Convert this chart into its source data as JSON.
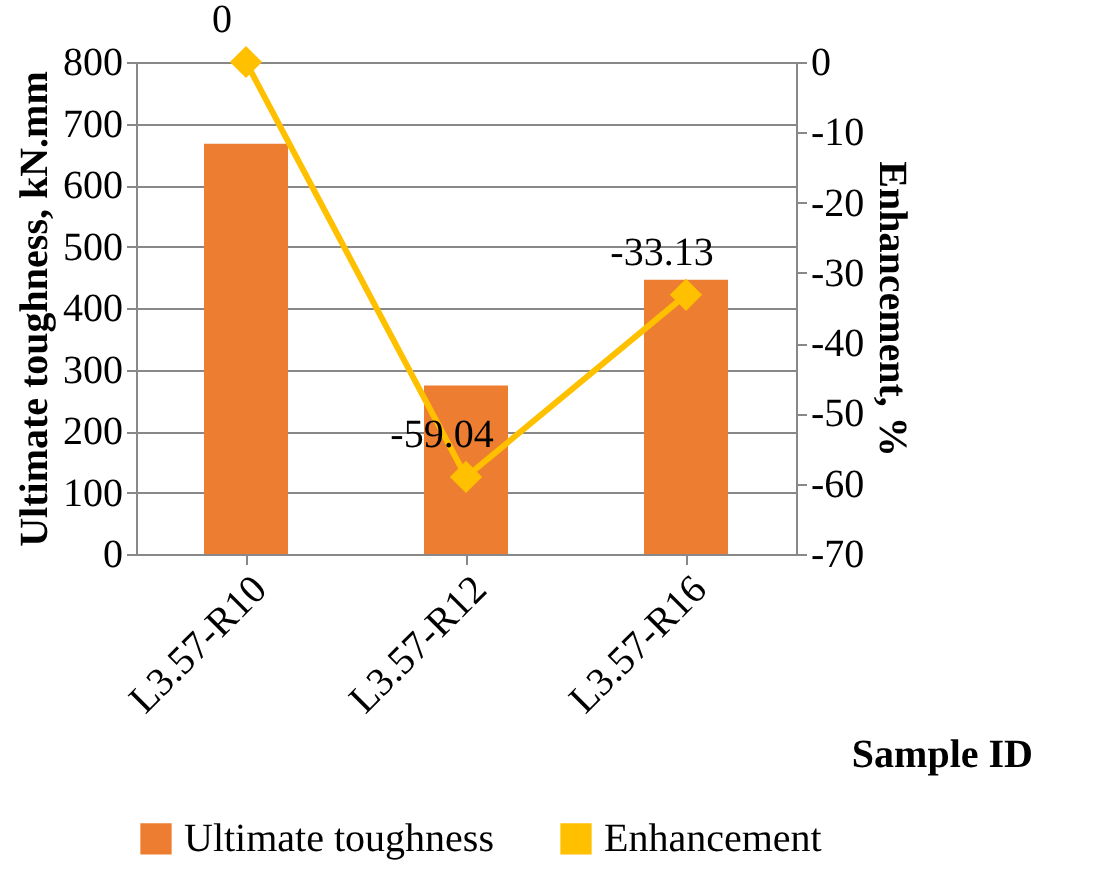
{
  "chart_data": {
    "type": "bar",
    "xlabel": "Sample ID",
    "ylabel": "Ultimate toughness, kN.mm",
    "y2label": "Enhancement, %",
    "categories": [
      "L3.57-R10",
      "L3.57-R12",
      "L3.57-R16"
    ],
    "series": [
      {
        "name": "Ultimate toughness",
        "color": "#ed7d31",
        "values": [
          667,
          274,
          446
        ]
      },
      {
        "name": "Enhancement",
        "type": "line",
        "axis": "y2",
        "color": "#ffc000",
        "values": [
          0,
          -59.04,
          -33.13
        ],
        "value_labels": [
          "0",
          "-59.04",
          "-33.13"
        ]
      }
    ],
    "ylim": [
      0,
      800
    ],
    "yticks": [
      0,
      100,
      200,
      300,
      400,
      500,
      600,
      700,
      800
    ],
    "y2lim": [
      -70,
      0
    ],
    "y2ticks": [
      -70,
      -60,
      -50,
      -40,
      -30,
      -20,
      -10,
      0
    ],
    "grid": "y",
    "legend": "bottom",
    "marker": "diamond",
    "line_style": "solid"
  }
}
